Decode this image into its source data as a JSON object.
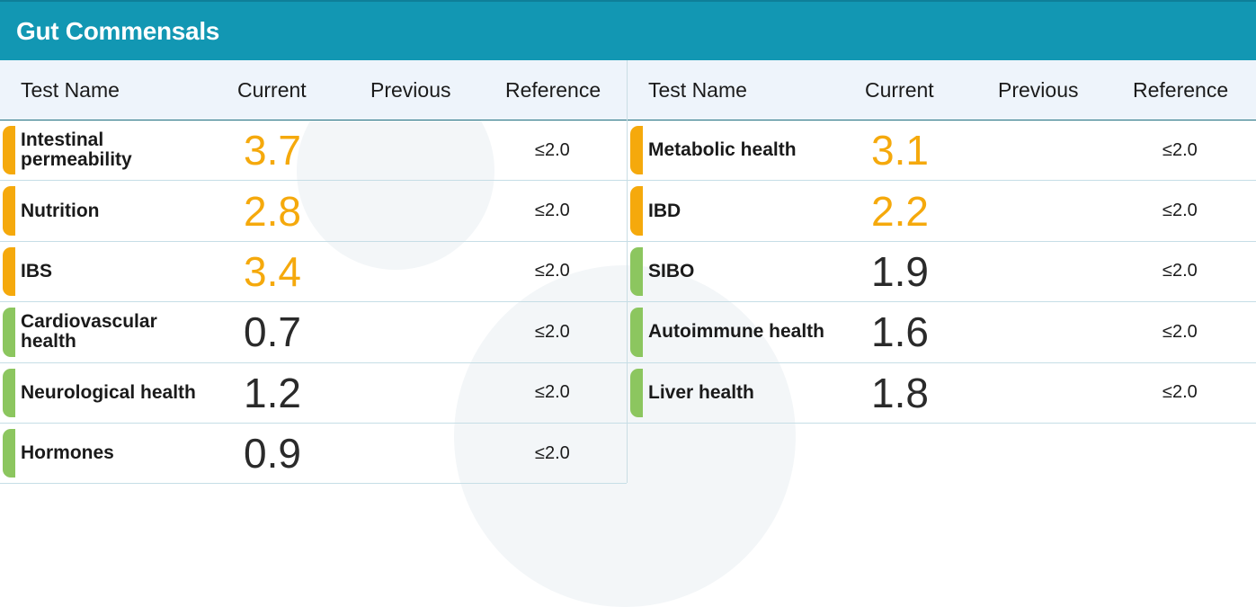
{
  "header": {
    "title": "Gut Commensals"
  },
  "columns": {
    "name": "Test Name",
    "current": "Current",
    "previous": "Previous",
    "reference": "Reference"
  },
  "colors": {
    "header_bg": "#1297b3",
    "high": "#f5a90c",
    "normal": "#8cc65f"
  },
  "left_rows": [
    {
      "name": "Intestinal permeability",
      "current": "3.7",
      "previous": "",
      "reference": "≤2.0",
      "status": "high"
    },
    {
      "name": "Nutrition",
      "current": "2.8",
      "previous": "",
      "reference": "≤2.0",
      "status": "high"
    },
    {
      "name": "IBS",
      "current": "3.4",
      "previous": "",
      "reference": "≤2.0",
      "status": "high"
    },
    {
      "name": "Cardiovascular health",
      "current": "0.7",
      "previous": "",
      "reference": "≤2.0",
      "status": "normal"
    },
    {
      "name": "Neurological health",
      "current": "1.2",
      "previous": "",
      "reference": "≤2.0",
      "status": "normal"
    },
    {
      "name": "Hormones",
      "current": "0.9",
      "previous": "",
      "reference": "≤2.0",
      "status": "normal"
    }
  ],
  "right_rows": [
    {
      "name": "Metabolic health",
      "current": "3.1",
      "previous": "",
      "reference": "≤2.0",
      "status": "high"
    },
    {
      "name": "IBD",
      "current": "2.2",
      "previous": "",
      "reference": "≤2.0",
      "status": "high"
    },
    {
      "name": "SIBO",
      "current": "1.9",
      "previous": "",
      "reference": "≤2.0",
      "status": "normal"
    },
    {
      "name": "Autoimmune health",
      "current": "1.6",
      "previous": "",
      "reference": "≤2.0",
      "status": "normal"
    },
    {
      "name": "Liver health",
      "current": "1.8",
      "previous": "",
      "reference": "≤2.0",
      "status": "normal"
    }
  ]
}
